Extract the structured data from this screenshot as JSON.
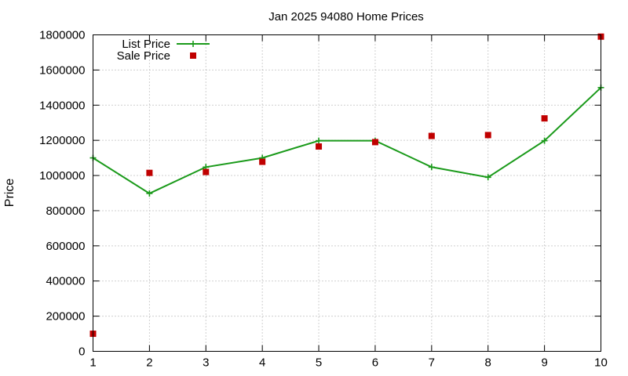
{
  "chart_data": {
    "type": "line",
    "title": "Jan 2025 94080 Home Prices",
    "xlabel": "",
    "ylabel": "Price",
    "x": [
      1,
      2,
      3,
      4,
      5,
      6,
      7,
      8,
      9,
      10
    ],
    "xlim": [
      1,
      10
    ],
    "ylim": [
      0,
      1800000
    ],
    "xticks": [
      "1",
      "2",
      "3",
      "4",
      "5",
      "6",
      "7",
      "8",
      "9",
      "10"
    ],
    "yticks": [
      "0",
      "200000",
      "400000",
      "600000",
      "800000",
      "1000000",
      "1200000",
      "1400000",
      "1600000",
      "1800000"
    ],
    "grid": true,
    "legend_position": "top-left",
    "series": [
      {
        "name": "List Price",
        "style": "line-with-plus-markers",
        "color": "#1a9a1a",
        "values": [
          1100000,
          898000,
          1048000,
          1100000,
          1198000,
          1198000,
          1048000,
          990000,
          1198000,
          1500000
        ]
      },
      {
        "name": "Sale Price",
        "style": "square-markers",
        "color": "#c00000",
        "values": [
          100000,
          1015000,
          1020000,
          1078000,
          1165000,
          1190000,
          1225000,
          1230000,
          1325000,
          1790000
        ]
      }
    ]
  }
}
